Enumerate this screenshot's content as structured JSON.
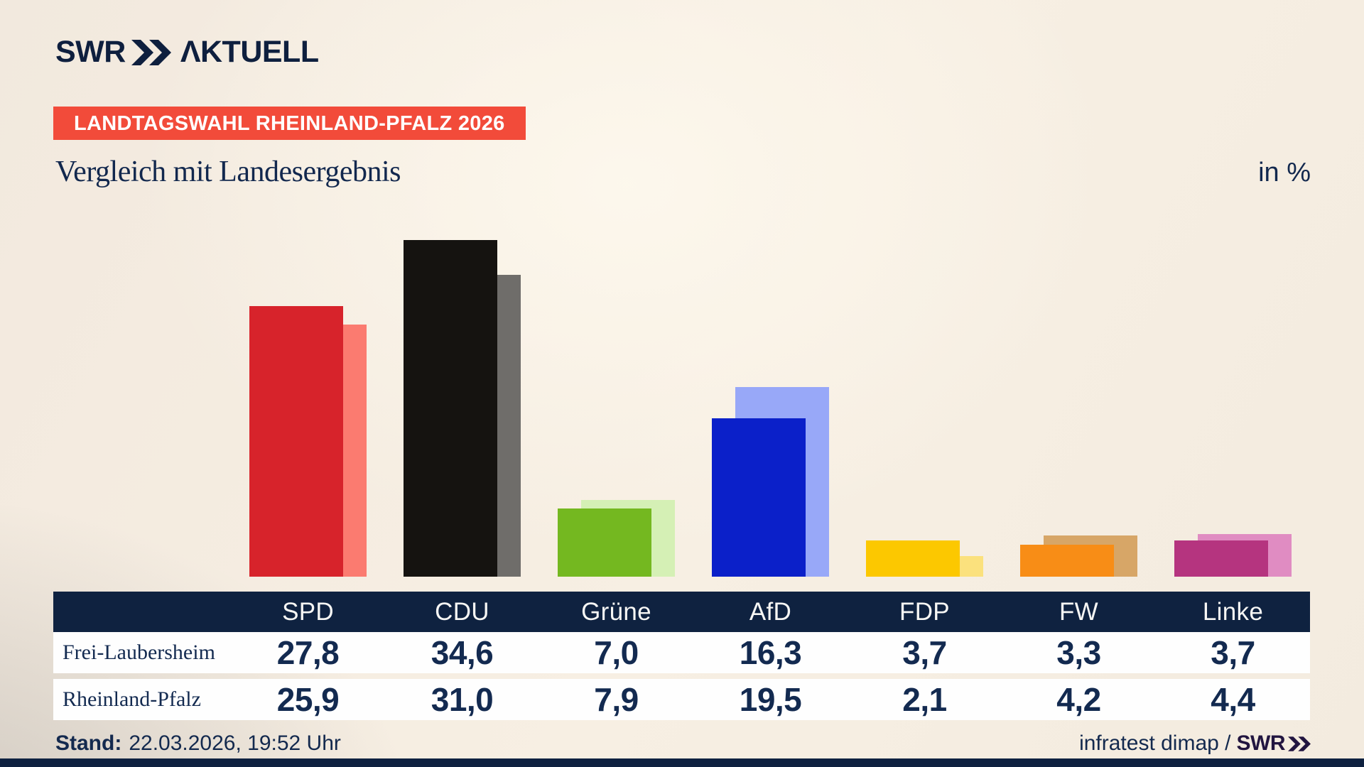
{
  "brand": {
    "name_left": "SWR",
    "name_right": "ΛKTUELL"
  },
  "badge": {
    "label": "LANDTAGSWAHL RHEINLAND-PFALZ 2026",
    "bg": "#f24b3a"
  },
  "header": {
    "title": "Vergleich mit Landesergebnis",
    "unit": "in %"
  },
  "chart_data": {
    "type": "bar",
    "categories": [
      "SPD",
      "CDU",
      "Grüne",
      "AfD",
      "FDP",
      "FW",
      "Linke"
    ],
    "series": [
      {
        "name": "Frei-Laubersheim",
        "values": [
          27.8,
          34.6,
          7.0,
          16.3,
          3.7,
          3.3,
          3.7
        ]
      },
      {
        "name": "Rheinland-Pfalz",
        "values": [
          25.9,
          31.0,
          7.9,
          19.5,
          2.1,
          4.2,
          4.4
        ]
      }
    ],
    "unit": "%",
    "ylim": [
      0,
      36.5
    ],
    "grid": false,
    "legend_position": "table-row-labels",
    "bar_colors_local": [
      "#d7232b",
      "#151310",
      "#74b820",
      "#0b20c9",
      "#fcc800",
      "#f88d16",
      "#b5347f"
    ],
    "bar_colors_state": [
      "#fb7b70",
      "#6f6d6a",
      "#d5f0b5",
      "#98a8f8",
      "#fbe17d",
      "#d7a667",
      "#e08cc2"
    ]
  },
  "table": {
    "corner_label": "",
    "row_labels": [
      "Frei-Laubersheim",
      "Rheinland-Pfalz"
    ]
  },
  "footer": {
    "stand_label": "Stand:",
    "stand_value": "22.03.2026, 19:52 Uhr",
    "source_text": "infratest dimap /",
    "source_brand": "SWR"
  },
  "colors": {
    "navy_text": "#132a50",
    "logo_navy": "#0e1f3e",
    "table_header_bg": "#0f2240",
    "bottom_bar": "#0e2140",
    "source_brand_color": "#221540"
  }
}
